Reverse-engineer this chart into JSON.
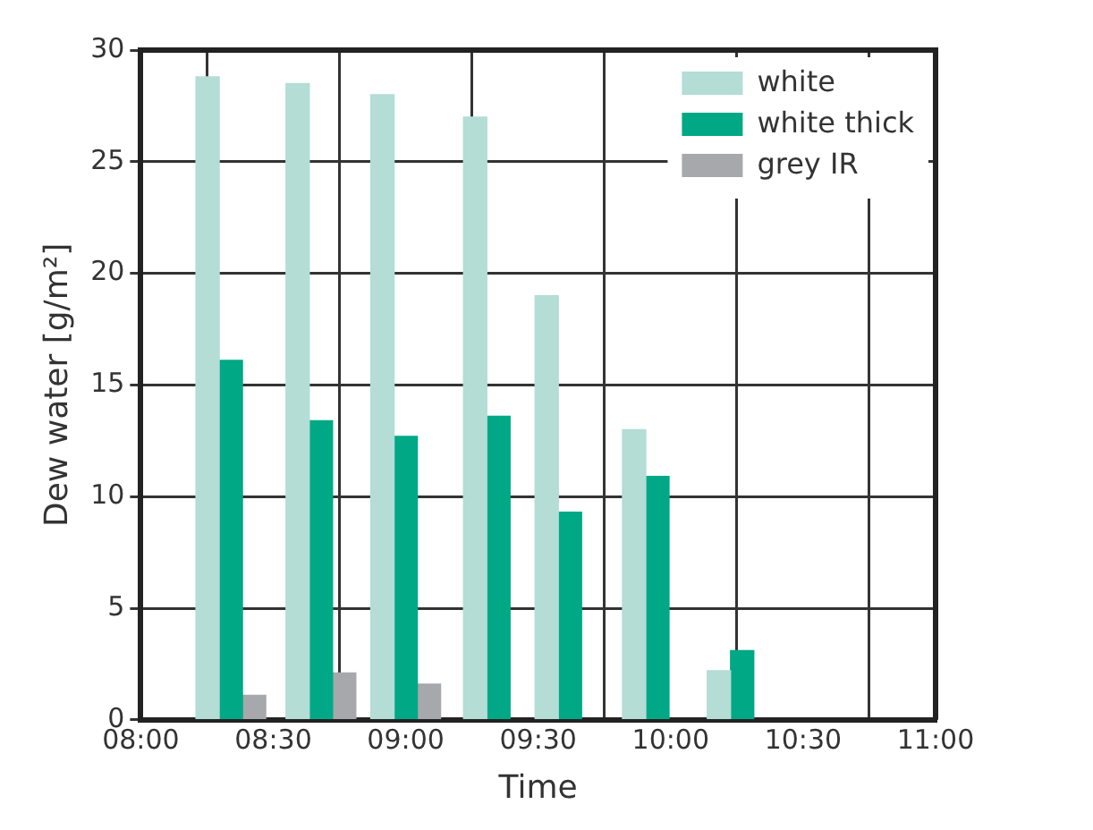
{
  "chart_data": {
    "type": "bar",
    "xlabel": "Time",
    "ylabel": "Dew water [g/m²]",
    "x": [
      8.34,
      8.68,
      9.0,
      9.35,
      9.62,
      9.95,
      10.27
    ],
    "series": [
      {
        "name": "white",
        "color": "#b3ddd5",
        "values": [
          28.8,
          28.5,
          28.0,
          27.0,
          19.0,
          13.0,
          2.2
        ]
      },
      {
        "name": "white thick",
        "color": "#00a886",
        "values": [
          16.1,
          13.4,
          12.7,
          13.6,
          9.3,
          10.9,
          3.1
        ]
      },
      {
        "name": "grey IR",
        "color": "#a7a8ab",
        "values": [
          1.1,
          2.1,
          1.6,
          null,
          null,
          null,
          null
        ]
      }
    ],
    "xlim": [
      8,
      11
    ],
    "xticks": [
      {
        "value": 8,
        "label": "08:00"
      },
      {
        "value": 8.5,
        "label": "08:30"
      },
      {
        "value": 9,
        "label": "09:00"
      },
      {
        "value": 9.5,
        "label": "09:30"
      },
      {
        "value": 10,
        "label": "10:00"
      },
      {
        "value": 10.5,
        "label": "10:30"
      },
      {
        "value": 11,
        "label": "11:00"
      }
    ],
    "ylim": [
      0,
      30
    ],
    "yticks": [
      0,
      5,
      10,
      15,
      20,
      25,
      30
    ],
    "grid": true,
    "legend": "top right"
  }
}
